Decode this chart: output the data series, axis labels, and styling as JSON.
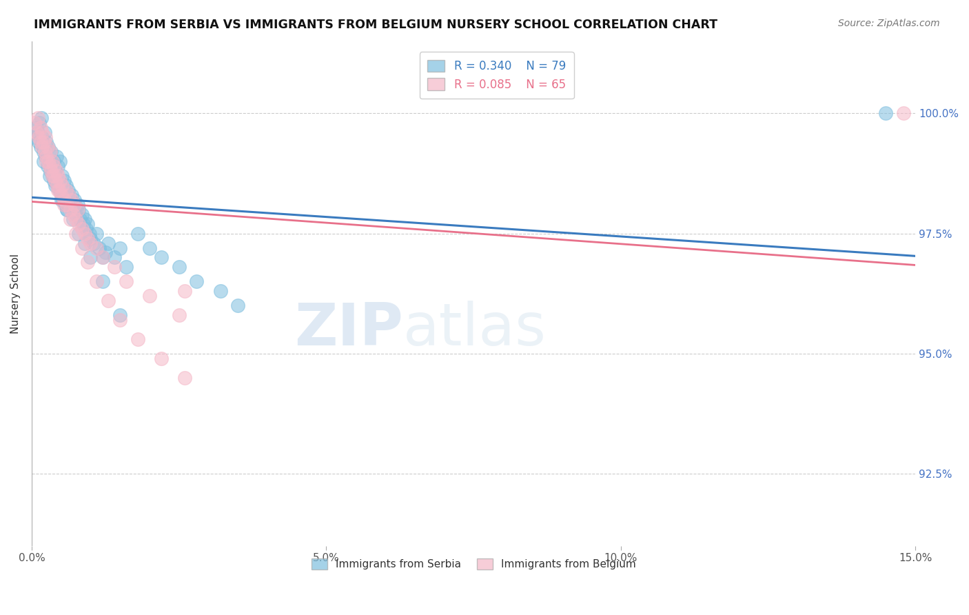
{
  "title": "IMMIGRANTS FROM SERBIA VS IMMIGRANTS FROM BELGIUM NURSERY SCHOOL CORRELATION CHART",
  "source_text": "Source: ZipAtlas.com",
  "ylabel": "Nursery School",
  "x_min": 0.0,
  "x_max": 15.0,
  "y_min": 91.0,
  "y_max": 101.5,
  "x_ticks": [
    0.0,
    5.0,
    10.0,
    15.0
  ],
  "x_tick_labels": [
    "0.0%",
    "5.0%",
    "10.0%",
    "15.0%"
  ],
  "y_ticks": [
    92.5,
    95.0,
    97.5,
    100.0
  ],
  "y_tick_labels": [
    "92.5%",
    "95.0%",
    "97.5%",
    "100.0%"
  ],
  "serbia_color": "#7fbfdf",
  "belgium_color": "#f5b8c8",
  "serbia_R": 0.34,
  "serbia_N": 79,
  "belgium_R": 0.085,
  "belgium_N": 65,
  "serbia_line_color": "#3a7bbf",
  "belgium_line_color": "#e8708a",
  "watermark_color": "#ccdff0",
  "legend_label_serbia": "Immigrants from Serbia",
  "legend_label_belgium": "Immigrants from Belgium",
  "serbia_x": [
    0.05,
    0.08,
    0.1,
    0.12,
    0.13,
    0.15,
    0.16,
    0.18,
    0.2,
    0.22,
    0.23,
    0.25,
    0.27,
    0.28,
    0.3,
    0.32,
    0.33,
    0.35,
    0.37,
    0.38,
    0.4,
    0.42,
    0.43,
    0.45,
    0.47,
    0.48,
    0.5,
    0.52,
    0.53,
    0.55,
    0.57,
    0.58,
    0.6,
    0.62,
    0.63,
    0.65,
    0.67,
    0.68,
    0.7,
    0.72,
    0.75,
    0.78,
    0.8,
    0.82,
    0.85,
    0.88,
    0.9,
    0.92,
    0.95,
    0.98,
    1.0,
    1.05,
    1.1,
    1.15,
    1.2,
    1.25,
    1.3,
    1.4,
    1.5,
    1.6,
    1.8,
    2.0,
    2.2,
    2.5,
    2.8,
    3.2,
    3.5,
    0.2,
    0.3,
    0.4,
    0.5,
    0.6,
    0.7,
    0.8,
    0.9,
    1.0,
    1.2,
    1.5,
    14.5
  ],
  "serbia_y": [
    99.5,
    99.7,
    99.6,
    99.4,
    99.8,
    99.3,
    99.9,
    99.5,
    99.2,
    99.6,
    99.1,
    99.4,
    98.9,
    99.3,
    99.0,
    98.8,
    99.2,
    98.7,
    99.0,
    98.6,
    98.8,
    99.1,
    98.5,
    98.9,
    98.4,
    99.0,
    98.3,
    98.7,
    98.2,
    98.6,
    98.1,
    98.5,
    98.0,
    98.4,
    98.3,
    98.2,
    98.1,
    98.3,
    98.0,
    98.2,
    97.9,
    98.1,
    98.0,
    97.8,
    97.9,
    97.7,
    97.8,
    97.6,
    97.7,
    97.5,
    97.4,
    97.3,
    97.5,
    97.2,
    97.0,
    97.1,
    97.3,
    97.0,
    97.2,
    96.8,
    97.5,
    97.2,
    97.0,
    96.8,
    96.5,
    96.3,
    96.0,
    99.0,
    98.7,
    98.5,
    98.2,
    98.0,
    97.8,
    97.5,
    97.3,
    97.0,
    96.5,
    95.8,
    100.0
  ],
  "belgium_x": [
    0.05,
    0.08,
    0.1,
    0.12,
    0.15,
    0.17,
    0.18,
    0.2,
    0.22,
    0.23,
    0.25,
    0.27,
    0.28,
    0.3,
    0.32,
    0.33,
    0.35,
    0.37,
    0.38,
    0.4,
    0.42,
    0.43,
    0.45,
    0.47,
    0.48,
    0.5,
    0.52,
    0.55,
    0.58,
    0.6,
    0.63,
    0.65,
    0.68,
    0.7,
    0.73,
    0.75,
    0.78,
    0.8,
    0.85,
    0.9,
    0.95,
    1.0,
    1.1,
    1.2,
    1.4,
    1.6,
    2.0,
    2.5,
    0.15,
    0.25,
    0.35,
    0.45,
    0.55,
    0.65,
    0.75,
    0.85,
    0.95,
    1.1,
    1.3,
    1.5,
    1.8,
    2.2,
    2.6,
    2.6,
    14.8
  ],
  "belgium_y": [
    99.8,
    99.6,
    99.9,
    99.5,
    99.7,
    99.3,
    99.6,
    99.4,
    99.2,
    99.5,
    99.1,
    99.3,
    99.0,
    98.9,
    99.2,
    98.8,
    99.0,
    98.7,
    98.9,
    98.6,
    98.8,
    98.5,
    98.7,
    98.4,
    98.6,
    98.3,
    98.5,
    98.2,
    98.4,
    98.1,
    98.3,
    98.0,
    98.2,
    97.9,
    98.1,
    97.8,
    98.0,
    97.7,
    97.6,
    97.5,
    97.4,
    97.3,
    97.2,
    97.0,
    96.8,
    96.5,
    96.2,
    95.8,
    99.4,
    99.0,
    98.7,
    98.4,
    98.1,
    97.8,
    97.5,
    97.2,
    96.9,
    96.5,
    96.1,
    95.7,
    95.3,
    94.9,
    94.5,
    96.3,
    100.0
  ]
}
